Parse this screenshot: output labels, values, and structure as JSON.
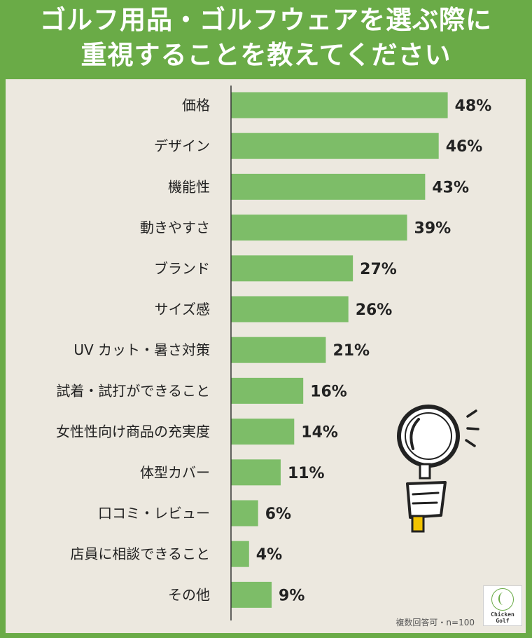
{
  "title_lines": [
    "ゴルフ用品・ゴルフウェアを選ぶ際に",
    "重視することを教えてください"
  ],
  "note": "複数回答可・n=100",
  "logo": {
    "line1": "Chicken",
    "line2": "Golf"
  },
  "colors": {
    "frame": "#6aab47",
    "bar": "#7dbd68",
    "panel": "#ece8df",
    "axis": "#333333",
    "magnifier_handle": "#f2c300"
  },
  "icon": "magnifying-glass-hand-icon",
  "chart_data": {
    "type": "bar",
    "orientation": "horizontal",
    "title": "ゴルフ用品・ゴルフウェアを選ぶ際に重視することを教えてください",
    "categories": [
      "価格",
      "デザイン",
      "機能性",
      "動きやすさ",
      "ブランド",
      "サイズ感",
      "UV カット・暑さ対策",
      "試着・試打ができること",
      "女性性向け商品の充実度",
      "体型カバー",
      "口コミ・レビュー",
      "店員に相談できること",
      "その他"
    ],
    "values": [
      48,
      46,
      43,
      39,
      27,
      26,
      21,
      16,
      14,
      11,
      6,
      4,
      9
    ],
    "value_labels": [
      "48%",
      "46%",
      "43%",
      "39%",
      "27%",
      "26%",
      "21%",
      "16%",
      "14%",
      "11%",
      "6%",
      "4%",
      "9%"
    ],
    "unit": "%",
    "xlim": [
      0,
      50
    ]
  }
}
